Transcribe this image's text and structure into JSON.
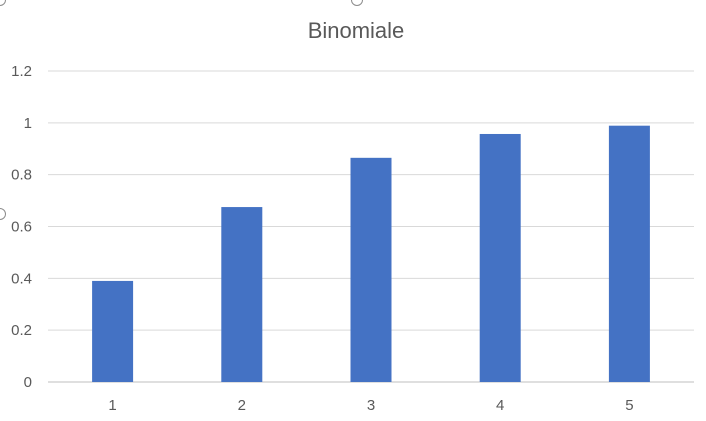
{
  "chart_data": {
    "type": "bar",
    "title": "Binomiale",
    "xlabel": "",
    "ylabel": "",
    "categories": [
      "1",
      "2",
      "3",
      "4",
      "5"
    ],
    "values": [
      0.39,
      0.675,
      0.865,
      0.957,
      0.989
    ],
    "ylim": [
      0,
      1.2
    ],
    "yticks": [
      "0",
      "0.2",
      "0.4",
      "0.6",
      "0.8",
      "1",
      "1.2"
    ],
    "grid": true,
    "legend": "none",
    "colors": {
      "bar": "#4472c4",
      "grid": "#d9d9d9",
      "axis": "#bfbfbf",
      "text": "#595959"
    }
  }
}
